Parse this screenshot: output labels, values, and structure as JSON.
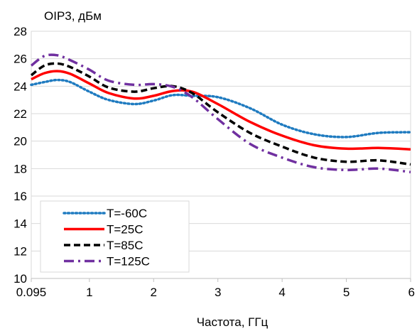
{
  "chart_data": {
    "type": "line",
    "ylabel": "OIP3, дБм",
    "xlabel": "Частота, ГГц",
    "xlim": [
      0.095,
      6
    ],
    "ylim": [
      10,
      28
    ],
    "x_tick_labels": [
      "0.095",
      "1",
      "2",
      "3",
      "4",
      "5",
      "6"
    ],
    "x_tick_values": [
      0.095,
      1,
      2,
      3,
      4,
      5,
      6
    ],
    "y_tick_values": [
      10,
      12,
      14,
      16,
      18,
      20,
      22,
      24,
      26,
      28
    ],
    "grid": "horizontal",
    "legend_position": "bottom-left",
    "series": [
      {
        "name": "T=-60C",
        "color": "#1f7bc0",
        "dash": "dotted",
        "x": [
          0.095,
          0.3,
          0.5,
          0.7,
          1.0,
          1.3,
          1.7,
          2.0,
          2.3,
          2.6,
          3.0,
          3.5,
          4.0,
          4.5,
          5.0,
          5.5,
          6.0
        ],
        "y": [
          24.1,
          24.3,
          24.45,
          24.3,
          23.6,
          23.0,
          22.7,
          22.95,
          23.35,
          23.3,
          23.2,
          22.4,
          21.2,
          20.5,
          20.3,
          20.6,
          20.65
        ]
      },
      {
        "name": "T=25C",
        "color": "#ff0000",
        "dash": "solid",
        "x": [
          0.095,
          0.3,
          0.5,
          0.7,
          1.0,
          1.3,
          1.7,
          2.0,
          2.3,
          2.6,
          3.0,
          3.5,
          4.0,
          4.5,
          5.0,
          5.5,
          6.0
        ],
        "y": [
          24.5,
          24.95,
          25.1,
          24.9,
          24.2,
          23.5,
          23.1,
          23.3,
          23.65,
          23.6,
          22.7,
          21.4,
          20.4,
          19.7,
          19.45,
          19.5,
          19.4
        ]
      },
      {
        "name": "T=85C",
        "color": "#000000",
        "dash": "dashed",
        "x": [
          0.095,
          0.3,
          0.5,
          0.7,
          1.0,
          1.3,
          1.7,
          2.0,
          2.3,
          2.6,
          3.0,
          3.5,
          4.0,
          4.5,
          5.0,
          5.5,
          6.0
        ],
        "y": [
          24.8,
          25.5,
          25.65,
          25.4,
          24.7,
          23.9,
          23.6,
          23.85,
          24.0,
          23.5,
          22.1,
          20.6,
          19.6,
          18.8,
          18.5,
          18.6,
          18.3
        ]
      },
      {
        "name": "T=125C",
        "color": "#7030a0",
        "dash": "dashdot",
        "x": [
          0.095,
          0.3,
          0.5,
          0.7,
          1.0,
          1.3,
          1.7,
          2.0,
          2.3,
          2.6,
          3.0,
          3.5,
          4.0,
          4.5,
          5.0,
          5.5,
          6.0
        ],
        "y": [
          25.5,
          26.2,
          26.25,
          25.9,
          25.2,
          24.4,
          24.1,
          24.15,
          23.95,
          23.2,
          21.6,
          19.8,
          18.8,
          18.1,
          17.9,
          18.0,
          17.75
        ]
      }
    ]
  }
}
